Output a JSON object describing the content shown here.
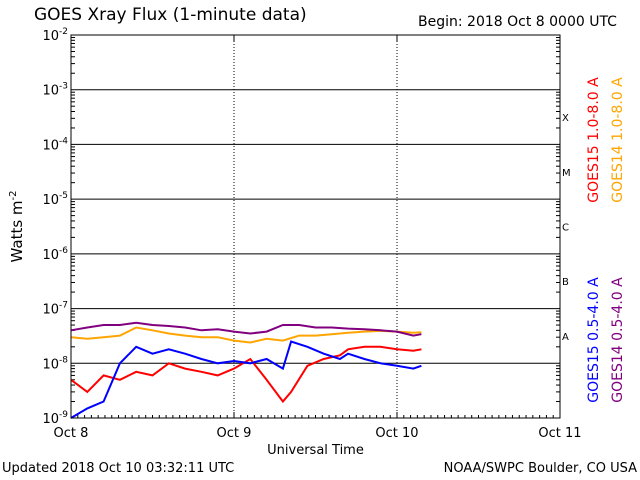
{
  "header": {
    "title": "GOES Xray Flux (1-minute data)",
    "begin": "Begin:  2018 Oct 8 0000 UTC"
  },
  "footer": {
    "updated": "Updated 2018 Oct 10 03:32:11 UTC",
    "credit": "NOAA/SWPC Boulder, CO USA"
  },
  "chart_data": {
    "type": "line",
    "title": "GOES Xray Flux (1-minute data)",
    "xlabel": "Universal Time",
    "ylabel": "Watts m^-2",
    "x_unit": "days since 2018 Oct 8 0000 UTC",
    "xlim": [
      0,
      3
    ],
    "ylim": [
      1e-09,
      0.01
    ],
    "yscale": "log",
    "grid": true,
    "x_ticks": [
      "Oct 8",
      "Oct 9",
      "Oct 10",
      "Oct 11"
    ],
    "y_ticks": [
      {
        "base": "10",
        "exp": "-9"
      },
      {
        "base": "10",
        "exp": "-8"
      },
      {
        "base": "10",
        "exp": "-7"
      },
      {
        "base": "10",
        "exp": "-6"
      },
      {
        "base": "10",
        "exp": "-5"
      },
      {
        "base": "10",
        "exp": "-4"
      },
      {
        "base": "10",
        "exp": "-3"
      },
      {
        "base": "10",
        "exp": "-2"
      }
    ],
    "flare_classes": [
      "A",
      "B",
      "C",
      "M",
      "X"
    ],
    "series": [
      {
        "name": "GOES15 1.0-8.0 A",
        "color": "#ff0000",
        "x": [
          0.0,
          0.1,
          0.2,
          0.3,
          0.4,
          0.5,
          0.6,
          0.7,
          0.8,
          0.9,
          1.0,
          1.1,
          1.2,
          1.3,
          1.35,
          1.45,
          1.55,
          1.65,
          1.7,
          1.8,
          1.9,
          2.0,
          2.1,
          2.15
        ],
        "values": [
          5e-09,
          3e-09,
          6e-09,
          5e-09,
          7e-09,
          6e-09,
          1e-08,
          8e-09,
          7e-09,
          6e-09,
          8e-09,
          1.2e-08,
          5e-09,
          2e-09,
          3e-09,
          9e-09,
          1.2e-08,
          1.4e-08,
          1.8e-08,
          2e-08,
          2e-08,
          1.8e-08,
          1.7e-08,
          1.8e-08
        ]
      },
      {
        "name": "GOES14 1.0-8.0 A",
        "color": "#ffa500",
        "x": [
          0.0,
          0.1,
          0.2,
          0.3,
          0.4,
          0.5,
          0.6,
          0.7,
          0.8,
          0.9,
          1.0,
          1.1,
          1.2,
          1.3,
          1.4,
          1.5,
          1.6,
          1.7,
          1.8,
          1.9,
          2.0,
          2.1,
          2.15
        ],
        "values": [
          3e-08,
          2.8e-08,
          3e-08,
          3.2e-08,
          4.5e-08,
          4e-08,
          3.5e-08,
          3.2e-08,
          3e-08,
          3e-08,
          2.6e-08,
          2.4e-08,
          2.8e-08,
          2.6e-08,
          3.2e-08,
          3.2e-08,
          3.4e-08,
          3.6e-08,
          3.8e-08,
          3.9e-08,
          3.8e-08,
          3.6e-08,
          3.7e-08
        ]
      },
      {
        "name": "GOES15 0.5-4.0 A",
        "color": "#0000ff",
        "x": [
          0.0,
          0.1,
          0.2,
          0.3,
          0.4,
          0.5,
          0.6,
          0.7,
          0.8,
          0.9,
          1.0,
          1.1,
          1.2,
          1.3,
          1.35,
          1.45,
          1.55,
          1.65,
          1.7,
          1.8,
          1.9,
          2.0,
          2.1,
          2.15
        ],
        "values": [
          1e-09,
          1.5e-09,
          2e-09,
          1e-08,
          2e-08,
          1.5e-08,
          1.8e-08,
          1.5e-08,
          1.2e-08,
          1e-08,
          1.1e-08,
          1e-08,
          1.2e-08,
          8e-09,
          2.5e-08,
          2e-08,
          1.5e-08,
          1.2e-08,
          1.5e-08,
          1.2e-08,
          1e-08,
          9e-09,
          8e-09,
          9e-09
        ]
      },
      {
        "name": "GOES14 0.5-4.0 A",
        "color": "#800080",
        "x": [
          0.0,
          0.1,
          0.2,
          0.3,
          0.4,
          0.5,
          0.6,
          0.7,
          0.8,
          0.9,
          1.0,
          1.1,
          1.2,
          1.3,
          1.4,
          1.5,
          1.6,
          1.7,
          1.8,
          1.9,
          2.0,
          2.1,
          2.15
        ],
        "values": [
          4e-08,
          4.5e-08,
          5e-08,
          5e-08,
          5.5e-08,
          5e-08,
          4.8e-08,
          4.5e-08,
          4e-08,
          4.2e-08,
          3.8e-08,
          3.5e-08,
          3.8e-08,
          5e-08,
          5e-08,
          4.5e-08,
          4.5e-08,
          4.3e-08,
          4.2e-08,
          4e-08,
          3.8e-08,
          3.2e-08,
          3.4e-08
        ]
      }
    ]
  }
}
